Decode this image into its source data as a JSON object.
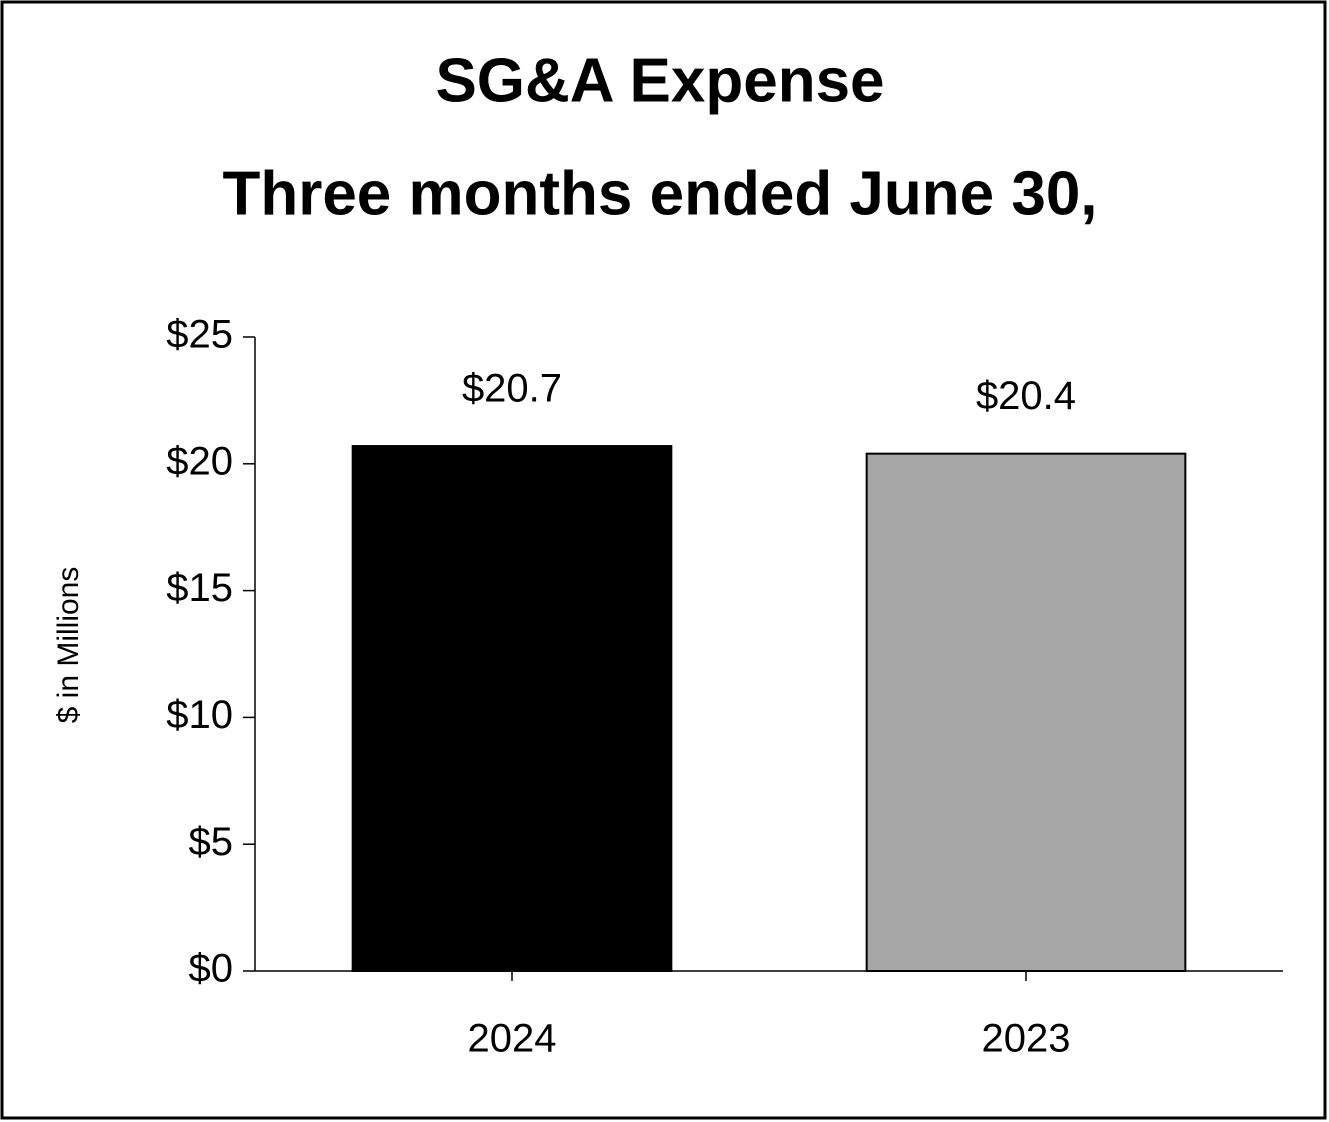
{
  "chart_data": {
    "type": "bar",
    "title": "SG&A Expense",
    "subtitle": "Three months ended June 30,",
    "y_label": "$ in Millions",
    "categories": [
      "2024",
      "2023"
    ],
    "values": [
      20.7,
      20.4
    ],
    "value_labels": [
      "$20.7",
      "$20.4"
    ],
    "colors": [
      "#000000",
      "#a6a6a6"
    ],
    "ylim": [
      0,
      25
    ],
    "yticks": [
      {
        "value": 0,
        "label": "$0"
      },
      {
        "value": 5,
        "label": "$5"
      },
      {
        "value": 10,
        "label": "$10"
      },
      {
        "value": 15,
        "label": "$15"
      },
      {
        "value": 20,
        "label": "$20"
      },
      {
        "value": 25,
        "label": "$25"
      }
    ],
    "grid": false
  }
}
